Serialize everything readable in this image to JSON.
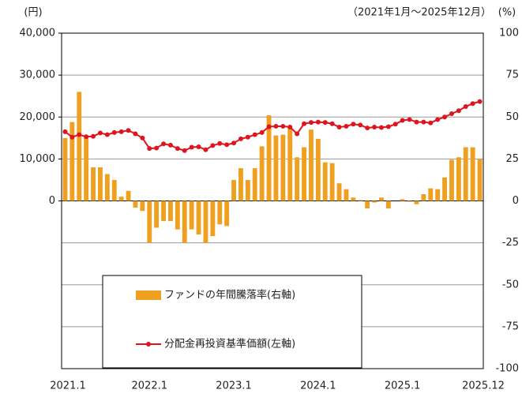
{
  "chart_data": {
    "type": "bar-line",
    "ylabel": "(円)",
    "y2label": "(%)",
    "subtitle": "（2021年1月～2025年12月）",
    "categories": [
      "2021.1",
      null,
      null,
      null,
      null,
      null,
      null,
      null,
      null,
      null,
      null,
      null,
      "2022.1",
      null,
      null,
      null,
      null,
      null,
      null,
      null,
      null,
      null,
      null,
      null,
      "2023.1",
      null,
      null,
      null,
      null,
      null,
      null,
      null,
      null,
      null,
      null,
      null,
      "2024.1",
      null,
      null,
      null,
      null,
      null,
      null,
      null,
      null,
      null,
      null,
      null,
      "2025.1",
      null,
      null,
      null,
      null,
      null,
      null,
      null,
      null,
      null,
      null,
      "2025.12"
    ],
    "series": [
      {
        "name": "ファンドの年間騰落率(右軸)",
        "color": "#f0a020",
        "axis": "y2",
        "kind": "bar",
        "values": [
          37.5,
          47,
          65,
          37.5,
          20,
          20,
          16,
          12.5,
          2.5,
          6,
          -4,
          -6,
          -25,
          -16,
          -12,
          -12,
          -17,
          -25,
          -17,
          -20,
          -25,
          -21,
          -14,
          -15,
          12.5,
          19.5,
          12.5,
          19.5,
          32.5,
          51,
          39,
          39.5,
          44,
          26,
          32,
          42.5,
          37,
          23,
          22.5,
          10.5,
          7,
          2,
          0.5,
          -4.5,
          -1,
          2,
          -4.5,
          0,
          1,
          -0.5,
          -2,
          4,
          7.5,
          7,
          14,
          24.5,
          26,
          32,
          32,
          25
        ]
      },
      {
        "name": "分配金再投資基準価額(左軸)",
        "color": "#e0141e",
        "axis": "y",
        "kind": "line",
        "values": [
          16500,
          15200,
          15800,
          15300,
          15400,
          16200,
          15800,
          16300,
          16500,
          16800,
          16000,
          15000,
          12500,
          12600,
          13600,
          13300,
          12500,
          12000,
          12800,
          12900,
          12200,
          13200,
          13700,
          13400,
          13800,
          14800,
          15200,
          15800,
          16300,
          17700,
          17800,
          17800,
          17600,
          16000,
          18400,
          18700,
          18800,
          18700,
          18400,
          17600,
          17800,
          18300,
          18100,
          17400,
          17600,
          17500,
          17700,
          18300,
          19200,
          19400,
          18800,
          18800,
          18600,
          19400,
          20000,
          20800,
          21500,
          22500,
          23200,
          23700
        ]
      }
    ],
    "ylim": [
      -40000,
      40000
    ],
    "yticks": [
      {
        "value": 0,
        "label": "0"
      },
      {
        "value": 10000,
        "label": "10,000"
      },
      {
        "value": 20000,
        "label": "20,000"
      },
      {
        "value": 30000,
        "label": "30,000"
      },
      {
        "value": 40000,
        "label": "40,000"
      }
    ],
    "y2lim": [
      -100,
      100
    ],
    "y2ticks": [
      -100,
      -75,
      -50,
      -25,
      0,
      25,
      50,
      75,
      100
    ],
    "grid": true
  }
}
